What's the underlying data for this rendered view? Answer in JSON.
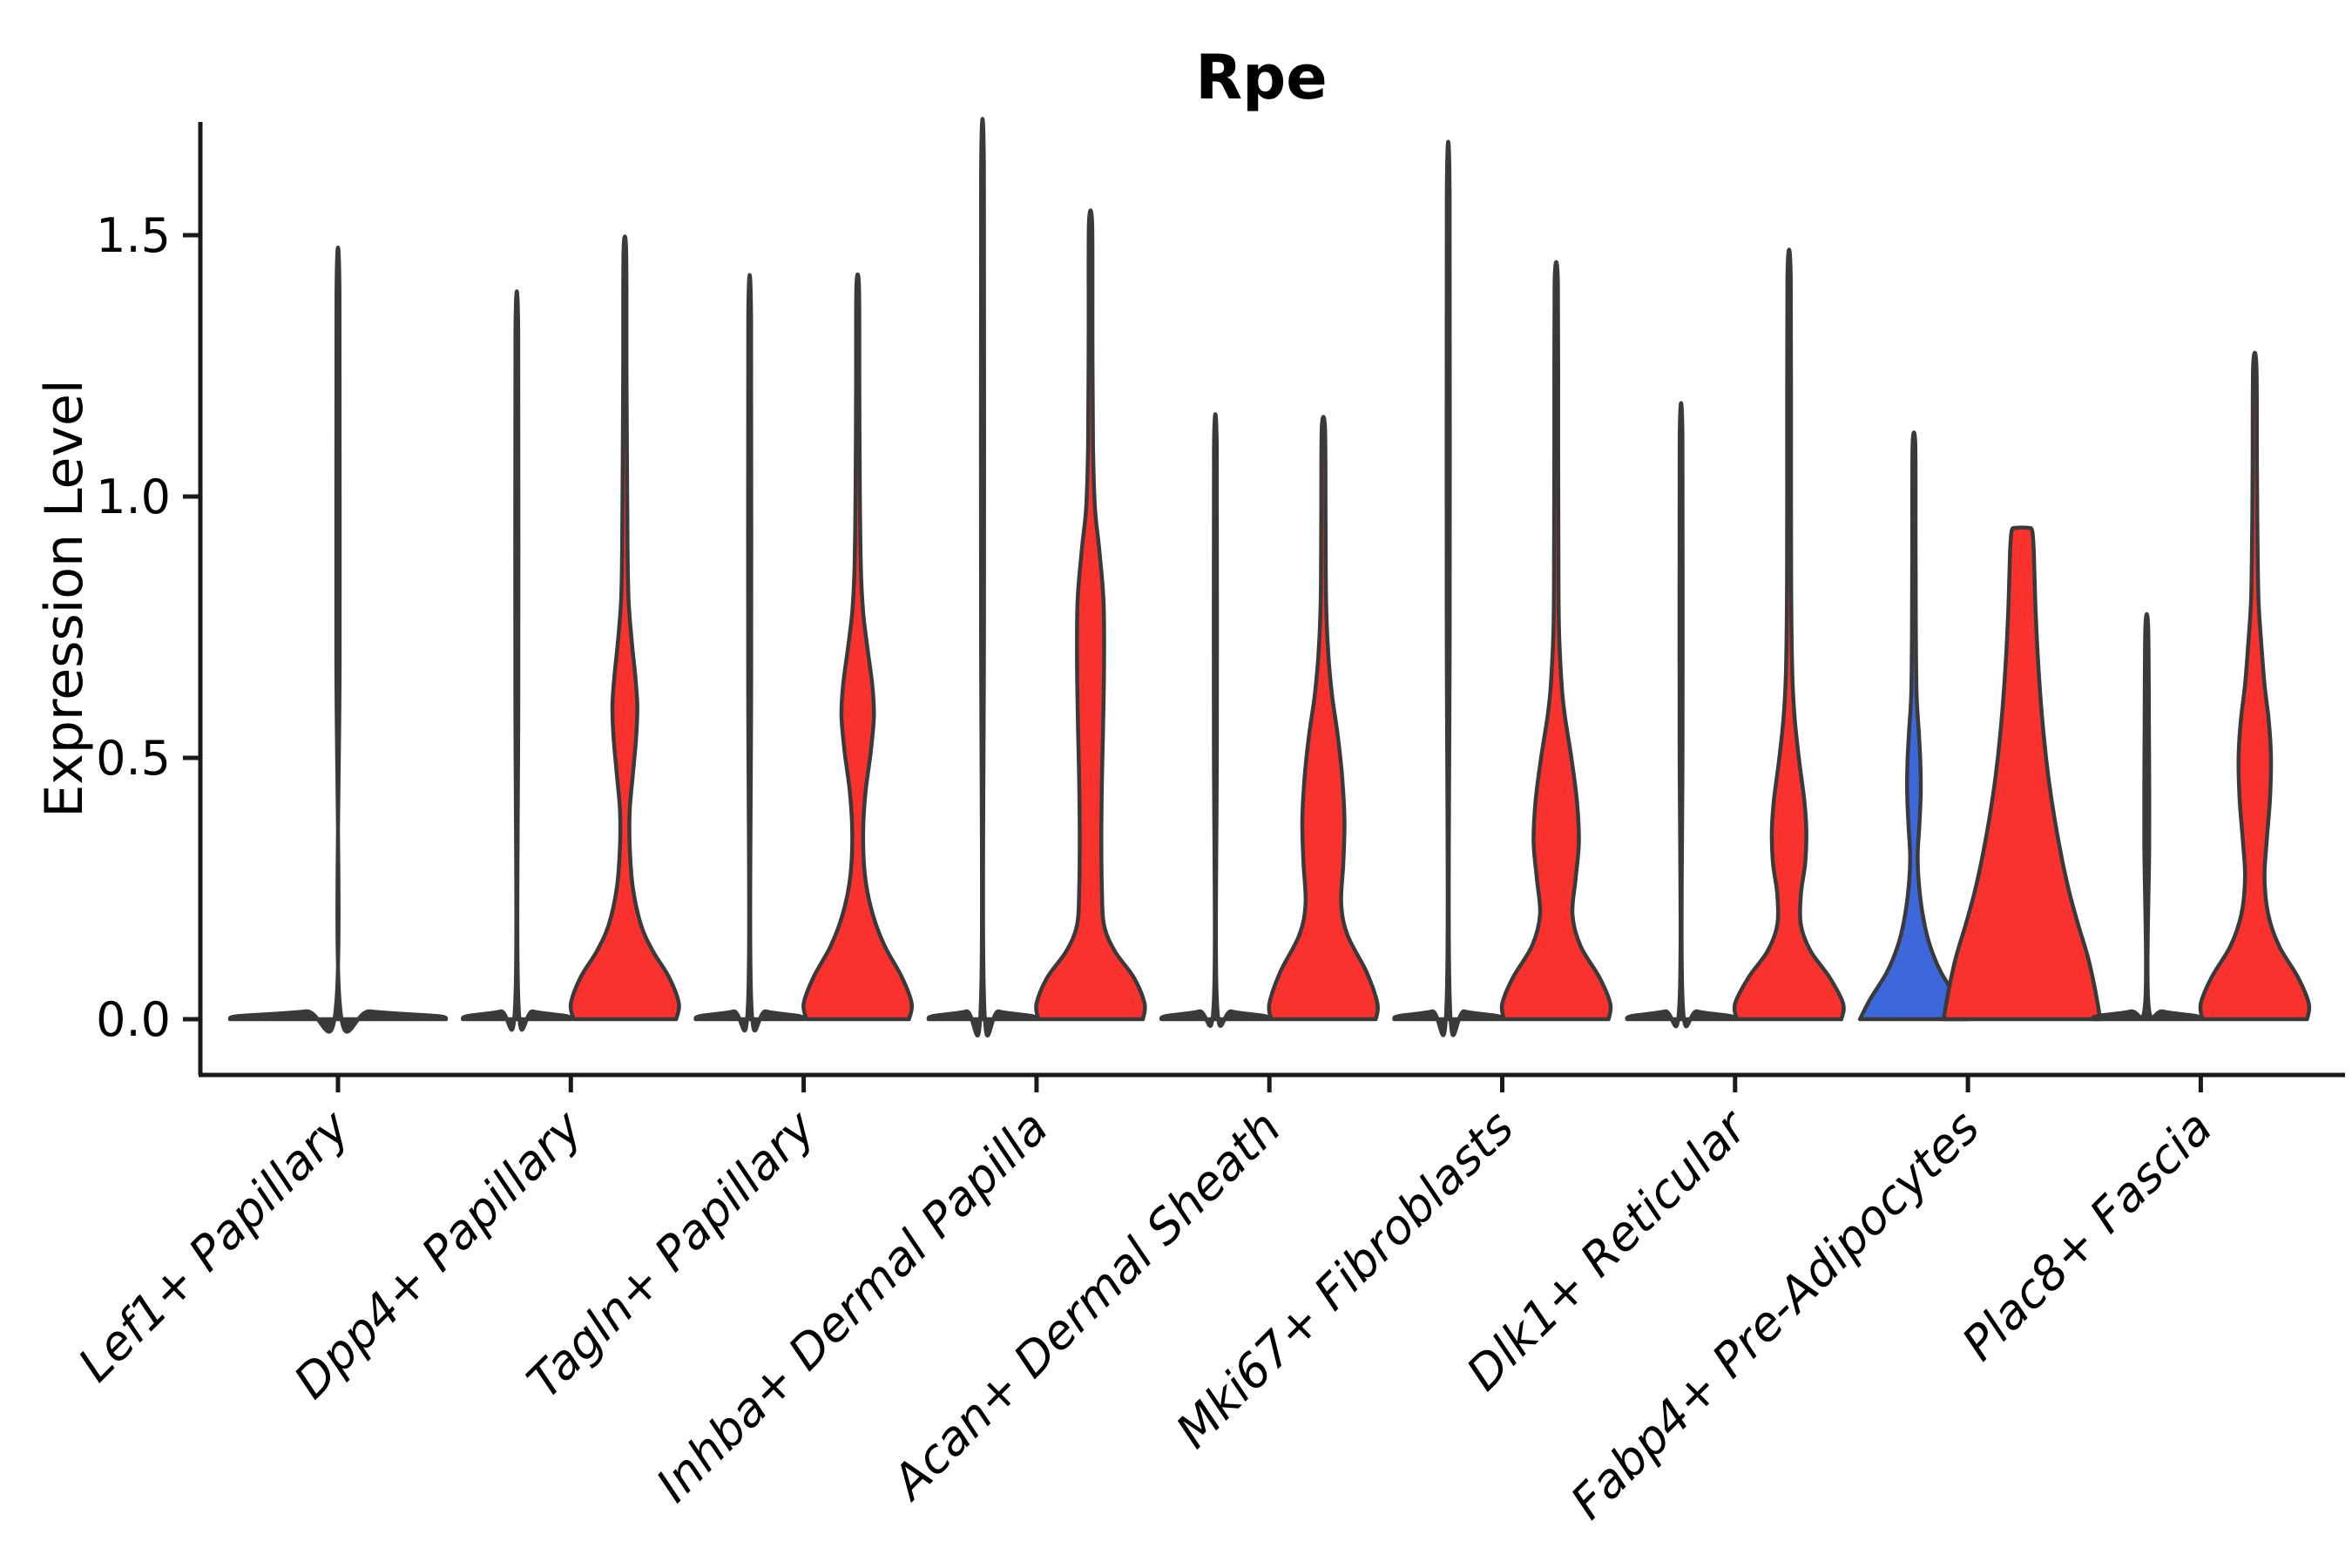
{
  "chart_data": {
    "type": "violin",
    "title": "Rpe",
    "ylabel": "Expression Level",
    "ylim": [
      -0.07,
      1.72
    ],
    "grid": false,
    "legend": "none",
    "ytick_values": [
      0.0,
      0.5,
      1.0,
      1.5
    ],
    "ytick_labels": [
      "0.0",
      "0.5",
      "1.0",
      "1.5"
    ],
    "colors": {
      "red": "#fa322d",
      "blue": "#3d68dc",
      "outline": "#3a3a3a",
      "axis": "#1a1a1a",
      "text": "#000000"
    },
    "categories": [
      {
        "label": "Lef1+ Papillary",
        "violins": [
          {
            "pos": "center",
            "fill": "none",
            "max": 1.39,
            "width": 2.0,
            "profile": [
              [
                0,
                1
              ],
              [
                0.006,
                0.92
              ],
              [
                0.015,
                0.3
              ],
              [
                0.03,
                0.016
              ],
              [
                0.7,
                0.015
              ],
              [
                1.39,
                0.014
              ]
            ]
          }
        ]
      },
      {
        "label": "Dpp4+ Papillary",
        "violins": [
          {
            "pos": "left",
            "fill": "none",
            "max": 1.31,
            "width": 1,
            "profile": [
              [
                0,
                1
              ],
              [
                0.006,
                0.92
              ],
              [
                0.015,
                0.3
              ],
              [
                0.03,
                0.03
              ],
              [
                0.65,
                0.028
              ],
              [
                1.31,
                0.026
              ]
            ]
          },
          {
            "pos": "right",
            "fill": "red",
            "max": 1.47,
            "width": 1,
            "profile": [
              [
                0,
                0.95
              ],
              [
                0.03,
                1
              ],
              [
                0.08,
                0.82
              ],
              [
                0.13,
                0.52
              ],
              [
                0.18,
                0.3
              ],
              [
                0.25,
                0.15
              ],
              [
                0.33,
                0.09
              ],
              [
                0.4,
                0.09
              ],
              [
                0.47,
                0.15
              ],
              [
                0.54,
                0.21
              ],
              [
                0.6,
                0.23
              ],
              [
                0.66,
                0.19
              ],
              [
                0.72,
                0.13
              ],
              [
                0.8,
                0.07
              ],
              [
                0.9,
                0.05
              ],
              [
                1.05,
                0.04
              ],
              [
                1.25,
                0.03
              ],
              [
                1.47,
                0.025
              ]
            ]
          }
        ]
      },
      {
        "label": "Tagln+ Papillary",
        "violins": [
          {
            "pos": "left",
            "fill": "none",
            "max": 1.34,
            "width": 1,
            "profile": [
              [
                0,
                1
              ],
              [
                0.006,
                0.92
              ],
              [
                0.015,
                0.3
              ],
              [
                0.03,
                0.03
              ],
              [
                0.67,
                0.028
              ],
              [
                1.34,
                0.026
              ]
            ]
          },
          {
            "pos": "right",
            "fill": "red",
            "max": 1.4,
            "width": 1,
            "profile": [
              [
                0,
                0.95
              ],
              [
                0.03,
                1
              ],
              [
                0.08,
                0.82
              ],
              [
                0.14,
                0.5
              ],
              [
                0.2,
                0.28
              ],
              [
                0.27,
                0.14
              ],
              [
                0.35,
                0.1
              ],
              [
                0.43,
                0.14
              ],
              [
                0.51,
                0.24
              ],
              [
                0.58,
                0.3
              ],
              [
                0.64,
                0.27
              ],
              [
                0.71,
                0.18
              ],
              [
                0.78,
                0.1
              ],
              [
                0.86,
                0.06
              ],
              [
                1,
                0.04
              ],
              [
                1.2,
                0.03
              ],
              [
                1.4,
                0.025
              ]
            ]
          }
        ]
      },
      {
        "label": "Inhba+ Dermal Papilla",
        "violins": [
          {
            "pos": "left",
            "fill": "none",
            "max": 1.62,
            "width": 1,
            "profile": [
              [
                0,
                1
              ],
              [
                0.006,
                0.92
              ],
              [
                0.015,
                0.3
              ],
              [
                0.03,
                0.03
              ],
              [
                0.8,
                0.028
              ],
              [
                1.62,
                0.026
              ]
            ]
          },
          {
            "pos": "right",
            "fill": "red",
            "max": 1.52,
            "width": 1,
            "profile": [
              [
                0,
                0.97
              ],
              [
                0.03,
                1
              ],
              [
                0.08,
                0.8
              ],
              [
                0.13,
                0.45
              ],
              [
                0.18,
                0.25
              ],
              [
                0.25,
                0.21
              ],
              [
                0.35,
                0.2
              ],
              [
                0.45,
                0.21
              ],
              [
                0.55,
                0.23
              ],
              [
                0.68,
                0.25
              ],
              [
                0.8,
                0.24
              ],
              [
                0.9,
                0.16
              ],
              [
                0.98,
                0.08
              ],
              [
                1.1,
                0.045
              ],
              [
                1.3,
                0.035
              ],
              [
                1.52,
                0.03
              ]
            ]
          }
        ]
      },
      {
        "label": "Acan+ Dermal Sheath",
        "violins": [
          {
            "pos": "left",
            "fill": "none",
            "max": 1.09,
            "width": 1,
            "profile": [
              [
                0,
                1
              ],
              [
                0.006,
                0.92
              ],
              [
                0.015,
                0.3
              ],
              [
                0.03,
                0.03
              ],
              [
                0.55,
                0.028
              ],
              [
                1.09,
                0.026
              ]
            ]
          },
          {
            "pos": "right",
            "fill": "red",
            "max": 1.13,
            "width": 1,
            "profile": [
              [
                0,
                0.97
              ],
              [
                0.03,
                1
              ],
              [
                0.09,
                0.8
              ],
              [
                0.16,
                0.45
              ],
              [
                0.22,
                0.33
              ],
              [
                0.3,
                0.37
              ],
              [
                0.38,
                0.39
              ],
              [
                0.46,
                0.35
              ],
              [
                0.54,
                0.27
              ],
              [
                0.62,
                0.16
              ],
              [
                0.7,
                0.09
              ],
              [
                0.8,
                0.05
              ],
              [
                0.95,
                0.04
              ],
              [
                1.13,
                0.03
              ]
            ]
          }
        ]
      },
      {
        "label": "Mki67+ Fibroblasts",
        "violins": [
          {
            "pos": "left",
            "fill": "none",
            "max": 1.58,
            "width": 1,
            "profile": [
              [
                0,
                1
              ],
              [
                0.006,
                0.92
              ],
              [
                0.015,
                0.3
              ],
              [
                0.03,
                0.03
              ],
              [
                0.79,
                0.028
              ],
              [
                1.58,
                0.026
              ]
            ]
          },
          {
            "pos": "right",
            "fill": "red",
            "max": 1.41,
            "width": 1,
            "profile": [
              [
                0,
                0.97
              ],
              [
                0.03,
                1
              ],
              [
                0.08,
                0.8
              ],
              [
                0.14,
                0.45
              ],
              [
                0.2,
                0.3
              ],
              [
                0.27,
                0.36
              ],
              [
                0.34,
                0.42
              ],
              [
                0.42,
                0.38
              ],
              [
                0.5,
                0.28
              ],
              [
                0.58,
                0.16
              ],
              [
                0.64,
                0.1
              ],
              [
                0.75,
                0.05
              ],
              [
                0.9,
                0.04
              ],
              [
                1.1,
                0.035
              ],
              [
                1.41,
                0.03
              ]
            ]
          }
        ]
      },
      {
        "label": "Dlk1+ Reticular",
        "violins": [
          {
            "pos": "left",
            "fill": "none",
            "max": 1.11,
            "width": 1,
            "profile": [
              [
                0,
                1
              ],
              [
                0.006,
                0.92
              ],
              [
                0.015,
                0.3
              ],
              [
                0.03,
                0.03
              ],
              [
                0.56,
                0.028
              ],
              [
                1.11,
                0.026
              ]
            ]
          },
          {
            "pos": "right",
            "fill": "red",
            "max": 1.42,
            "width": 1,
            "profile": [
              [
                0,
                0.97
              ],
              [
                0.03,
                1
              ],
              [
                0.08,
                0.75
              ],
              [
                0.13,
                0.4
              ],
              [
                0.18,
                0.22
              ],
              [
                0.24,
                0.22
              ],
              [
                0.3,
                0.3
              ],
              [
                0.36,
                0.32
              ],
              [
                0.42,
                0.28
              ],
              [
                0.5,
                0.18
              ],
              [
                0.58,
                0.1
              ],
              [
                0.66,
                0.06
              ],
              [
                0.8,
                0.04
              ],
              [
                1,
                0.035
              ],
              [
                1.42,
                0.03
              ]
            ]
          }
        ]
      },
      {
        "label": "Fabp4+ Pre-Adipocytes",
        "violins": [
          {
            "pos": "left",
            "fill": "blue",
            "max": 1.1,
            "width": 1,
            "profile": [
              [
                0,
                1
              ],
              [
                0.04,
                0.8
              ],
              [
                0.09,
                0.5
              ],
              [
                0.14,
                0.3
              ],
              [
                0.19,
                0.18
              ],
              [
                0.25,
                0.1
              ],
              [
                0.31,
                0.07
              ],
              [
                0.37,
                0.1
              ],
              [
                0.43,
                0.125
              ],
              [
                0.49,
                0.12
              ],
              [
                0.55,
                0.09
              ],
              [
                0.62,
                0.05
              ],
              [
                0.75,
                0.035
              ],
              [
                0.92,
                0.03
              ],
              [
                1.1,
                0.025
              ]
            ]
          },
          {
            "pos": "right",
            "fill": "red",
            "max": 0.94,
            "width": 1.45,
            "profile": [
              [
                0,
                1
              ],
              [
                0.06,
                0.93
              ],
              [
                0.12,
                0.84
              ],
              [
                0.18,
                0.72
              ],
              [
                0.24,
                0.61
              ],
              [
                0.3,
                0.52
              ],
              [
                0.38,
                0.42
              ],
              [
                0.46,
                0.34
              ],
              [
                0.54,
                0.28
              ],
              [
                0.62,
                0.235
              ],
              [
                0.7,
                0.2
              ],
              [
                0.78,
                0.175
              ],
              [
                0.85,
                0.16
              ],
              [
                0.9,
                0.15
              ],
              [
                0.935,
                0.13
              ],
              [
                0.94,
                0.08
              ]
            ]
          }
        ]
      },
      {
        "label": "Plac8+ Fascia",
        "violins": [
          {
            "pos": "left",
            "fill": "none",
            "max": 0.75,
            "width": 1,
            "profile": [
              [
                0,
                1
              ],
              [
                0.006,
                0.92
              ],
              [
                0.015,
                0.3
              ],
              [
                0.03,
                0.03
              ],
              [
                0.33,
                0.045
              ],
              [
                0.45,
                0.045
              ],
              [
                0.55,
                0.04
              ],
              [
                0.75,
                0.026
              ]
            ]
          },
          {
            "pos": "right",
            "fill": "red",
            "max": 1.25,
            "width": 1,
            "profile": [
              [
                0,
                0.97
              ],
              [
                0.03,
                1
              ],
              [
                0.08,
                0.8
              ],
              [
                0.14,
                0.45
              ],
              [
                0.2,
                0.25
              ],
              [
                0.27,
                0.18
              ],
              [
                0.34,
                0.22
              ],
              [
                0.42,
                0.28
              ],
              [
                0.5,
                0.3
              ],
              [
                0.57,
                0.26
              ],
              [
                0.64,
                0.18
              ],
              [
                0.72,
                0.12
              ],
              [
                0.8,
                0.07
              ],
              [
                0.92,
                0.05
              ],
              [
                1.05,
                0.04
              ],
              [
                1.25,
                0.03
              ]
            ]
          }
        ]
      }
    ]
  }
}
